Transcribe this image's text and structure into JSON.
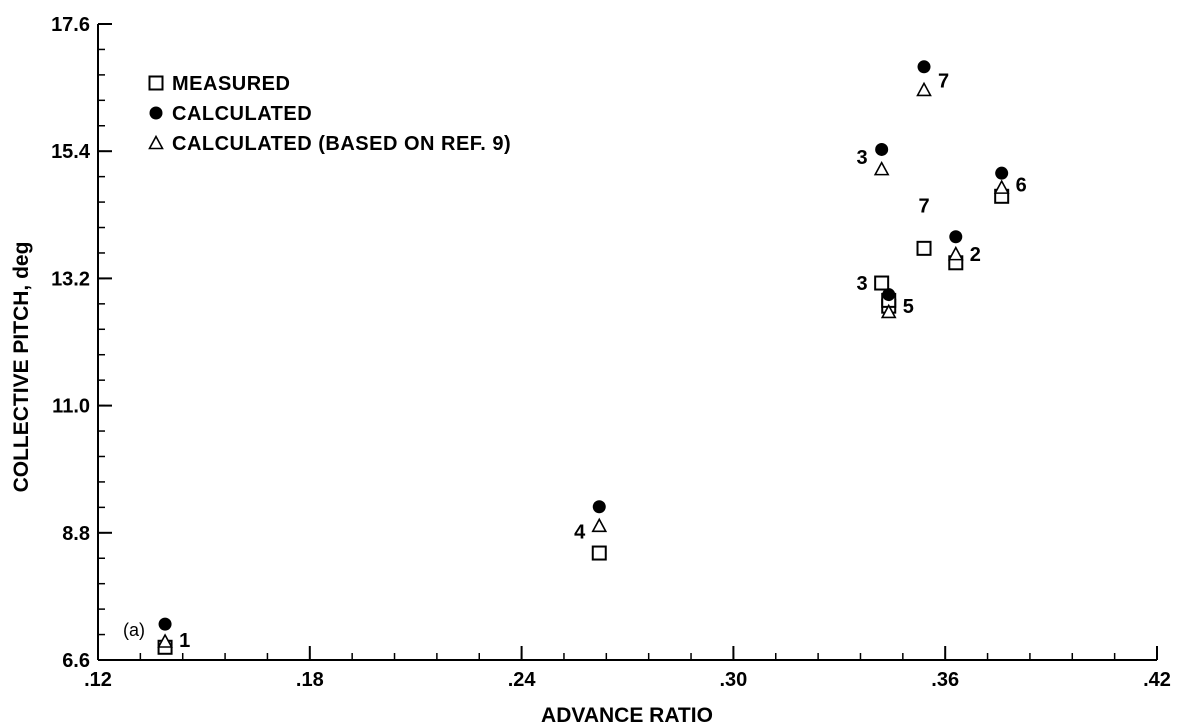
{
  "chart_data": {
    "type": "scatter",
    "title": "",
    "panel_label": "(a)",
    "xlabel": "ADVANCE RATIO",
    "ylabel": "COLLECTIVE PITCH, deg",
    "xlim": [
      0.12,
      0.42
    ],
    "ylim": [
      6.6,
      17.6
    ],
    "x_ticks": [
      {
        "value": 0.12,
        "label": ".12"
      },
      {
        "value": 0.18,
        "label": ".18"
      },
      {
        "value": 0.24,
        "label": ".24"
      },
      {
        "value": 0.3,
        "label": ".30"
      },
      {
        "value": 0.36,
        "label": ".36"
      },
      {
        "value": 0.42,
        "label": ".42"
      }
    ],
    "y_ticks": [
      {
        "value": 6.6,
        "label": "6.6"
      },
      {
        "value": 8.8,
        "label": "8.8"
      },
      {
        "value": 11.0,
        "label": "11.0"
      },
      {
        "value": 13.2,
        "label": "13.2"
      },
      {
        "value": 15.4,
        "label": "15.4"
      },
      {
        "value": 17.6,
        "label": "17.6"
      }
    ],
    "grid": false,
    "legend_position": "top-left",
    "series": [
      {
        "name": "MEASURED",
        "marker": "square-open",
        "points": [
          {
            "x": 0.139,
            "y": 6.82
          },
          {
            "x": 0.262,
            "y": 8.45
          },
          {
            "x": 0.342,
            "y": 13.12
          },
          {
            "x": 0.344,
            "y": 12.72
          },
          {
            "x": 0.344,
            "y": 12.82
          },
          {
            "x": 0.354,
            "y": 13.72
          },
          {
            "x": 0.363,
            "y": 13.47
          },
          {
            "x": 0.376,
            "y": 14.62
          }
        ]
      },
      {
        "name": "CALCULATED",
        "marker": "circle-filled",
        "points": [
          {
            "x": 0.139,
            "y": 7.22
          },
          {
            "x": 0.262,
            "y": 9.25
          },
          {
            "x": 0.342,
            "y": 15.43
          },
          {
            "x": 0.344,
            "y": 12.92
          },
          {
            "x": 0.354,
            "y": 16.86
          },
          {
            "x": 0.363,
            "y": 13.92
          },
          {
            "x": 0.376,
            "y": 15.02
          }
        ]
      },
      {
        "name": "CALCULATED (BASED ON REF. 9)",
        "marker": "triangle-open",
        "points": [
          {
            "x": 0.139,
            "y": 6.92
          },
          {
            "x": 0.262,
            "y": 8.92
          },
          {
            "x": 0.342,
            "y": 15.09
          },
          {
            "x": 0.344,
            "y": 12.62
          },
          {
            "x": 0.354,
            "y": 16.46
          },
          {
            "x": 0.363,
            "y": 13.62
          },
          {
            "x": 0.376,
            "y": 14.77
          }
        ]
      }
    ],
    "point_labels": [
      {
        "text": "1",
        "x": 0.139,
        "y": 6.95,
        "side": "right"
      },
      {
        "text": "4",
        "x": 0.262,
        "y": 8.82,
        "side": "left"
      },
      {
        "text": "3",
        "x": 0.342,
        "y": 15.3,
        "side": "left"
      },
      {
        "text": "3",
        "x": 0.342,
        "y": 13.12,
        "side": "left"
      },
      {
        "text": "5",
        "x": 0.344,
        "y": 12.72,
        "side": "right"
      },
      {
        "text": "7",
        "x": 0.354,
        "y": 16.62,
        "side": "right"
      },
      {
        "text": "7",
        "x": 0.354,
        "y": 14.08,
        "side": "above"
      },
      {
        "text": "2",
        "x": 0.363,
        "y": 13.62,
        "side": "right"
      },
      {
        "text": "6",
        "x": 0.376,
        "y": 14.82,
        "side": "right"
      }
    ]
  }
}
